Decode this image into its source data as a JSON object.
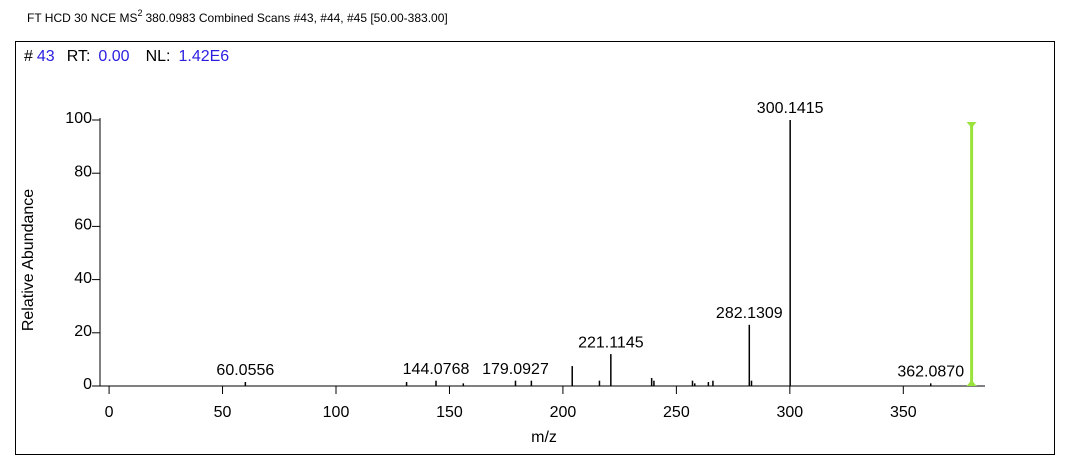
{
  "chart_data": {
    "type": "spectrum",
    "header_prefix": "FT HCD 30 NCE MS",
    "header_superscript": "2",
    "header_suffix": "380.0983 Combined Scans #43, #44, #45 [50.00-383.00]",
    "scan_label": "#",
    "scan": "43",
    "rt_label": "RT:",
    "rt": "0.00",
    "nl_label": "NL:",
    "nl": "1.42E6",
    "x_label": "m/z",
    "y_label": "Relative Abundance",
    "xlim": [
      -4,
      386
    ],
    "ylim": [
      0,
      100
    ],
    "xticks": [
      0,
      50,
      100,
      150,
      200,
      250,
      300,
      350
    ],
    "yticks": [
      0,
      20,
      40,
      60,
      80,
      100
    ],
    "color": "#000000",
    "x": [
      60.0556,
      131.1,
      144.0768,
      156.1,
      179.0927,
      186.1,
      204.1,
      216.1,
      221.1145,
      239.1,
      240.1,
      257.1,
      258.1,
      264.1,
      266.1,
      282.1309,
      283.1,
      300.1415,
      362.087
    ],
    "x_labels": [
      "60.0556",
      null,
      "144.0768",
      null,
      "179.0927",
      null,
      null,
      null,
      "221.1145",
      null,
      null,
      null,
      null,
      null,
      null,
      "282.1309",
      null,
      "300.1415",
      "362.0870"
    ],
    "values": [
      1.5,
      1.5,
      2,
      1,
      2,
      2,
      7.5,
      2,
      12,
      3,
      2,
      2,
      1,
      1.5,
      2,
      23,
      2,
      100,
      1
    ],
    "precursor_mz": 380.0983,
    "precursor_color": "#99e33c"
  }
}
